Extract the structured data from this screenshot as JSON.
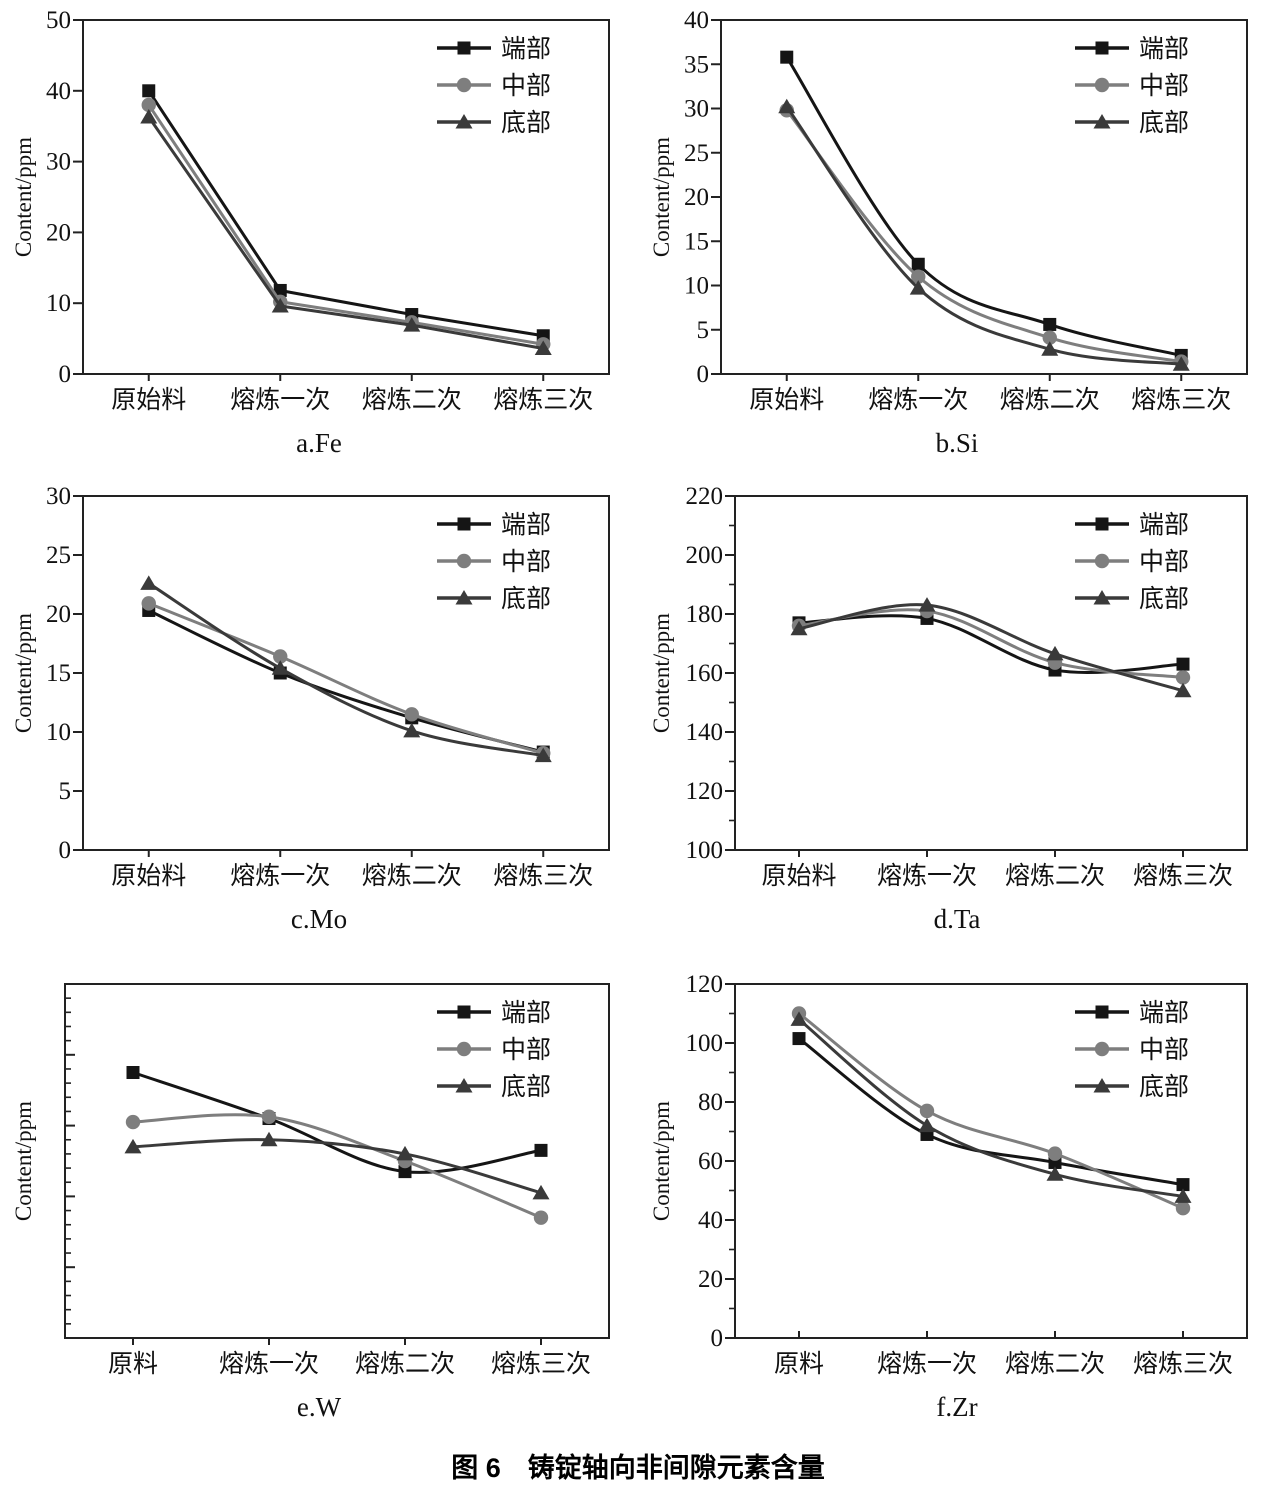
{
  "caption": "图 6　铸锭轴向非间隙元素含量",
  "ylabel": "Content/ppm",
  "chart_data": [
    {
      "type": "line",
      "title": "a.Fe",
      "ylabel": "Content/ppm",
      "categories": [
        "原始料",
        "熔炼一次",
        "熔炼二次",
        "熔炼三次"
      ],
      "ylim": [
        0,
        50
      ],
      "ytick_step": 10,
      "yminor_step": null,
      "show_ytick_labels": true,
      "yticks_inward": false,
      "xticks_inward": false,
      "smooth": false,
      "grid": false,
      "legend_position": "top-right",
      "series": [
        {
          "name": "端部",
          "marker": "square",
          "color": "#151515",
          "values": [
            40.0,
            11.8,
            8.4,
            5.4
          ]
        },
        {
          "name": "中部",
          "marker": "circle",
          "color": "#7e7e7e",
          "values": [
            38.0,
            10.2,
            7.3,
            4.2
          ]
        },
        {
          "name": "底部",
          "marker": "triangle",
          "color": "#3a3a3a",
          "values": [
            36.3,
            9.6,
            6.9,
            3.6
          ]
        }
      ]
    },
    {
      "type": "line",
      "title": "b.Si",
      "ylabel": "Content/ppm",
      "categories": [
        "原始料",
        "熔炼一次",
        "熔炼二次",
        "熔炼三次"
      ],
      "ylim": [
        0,
        40
      ],
      "ytick_step": 5,
      "yminor_step": null,
      "show_ytick_labels": true,
      "yticks_inward": false,
      "xticks_inward": false,
      "smooth": true,
      "grid": false,
      "legend_position": "top-right",
      "series": [
        {
          "name": "端部",
          "marker": "square",
          "color": "#151515",
          "values": [
            35.8,
            12.4,
            5.6,
            2.1
          ]
        },
        {
          "name": "中部",
          "marker": "circle",
          "color": "#7e7e7e",
          "values": [
            29.8,
            11.0,
            4.1,
            1.4
          ]
        },
        {
          "name": "底部",
          "marker": "triangle",
          "color": "#3a3a3a",
          "values": [
            30.2,
            9.7,
            2.8,
            1.1
          ]
        }
      ]
    },
    {
      "type": "line",
      "title": "c.Mo",
      "ylabel": "Content/ppm",
      "categories": [
        "原始料",
        "熔炼一次",
        "熔炼二次",
        "熔炼三次"
      ],
      "ylim": [
        0,
        30
      ],
      "ytick_step": 5,
      "yminor_step": null,
      "show_ytick_labels": true,
      "yticks_inward": false,
      "xticks_inward": false,
      "smooth": true,
      "grid": false,
      "legend_position": "top-right",
      "series": [
        {
          "name": "端部",
          "marker": "square",
          "color": "#151515",
          "values": [
            20.3,
            15.0,
            11.2,
            8.3
          ]
        },
        {
          "name": "中部",
          "marker": "circle",
          "color": "#7e7e7e",
          "values": [
            20.9,
            16.4,
            11.5,
            8.2
          ]
        },
        {
          "name": "底部",
          "marker": "triangle",
          "color": "#3a3a3a",
          "values": [
            22.6,
            15.4,
            10.1,
            8.0
          ]
        }
      ]
    },
    {
      "type": "line",
      "title": "d.Ta",
      "ylabel": "Content/ppm",
      "categories": [
        "原始料",
        "熔炼一次",
        "熔炼二次",
        "熔炼三次"
      ],
      "ylim": [
        100,
        220
      ],
      "ytick_step": 20,
      "yminor_step": 10,
      "show_ytick_labels": true,
      "yticks_inward": false,
      "xticks_inward": false,
      "smooth": true,
      "grid": false,
      "legend_position": "top-right",
      "series": [
        {
          "name": "端部",
          "marker": "square",
          "color": "#151515",
          "values": [
            177.0,
            178.5,
            161.0,
            163.0
          ]
        },
        {
          "name": "中部",
          "marker": "circle",
          "color": "#7e7e7e",
          "values": [
            176.0,
            181.0,
            163.5,
            158.5
          ]
        },
        {
          "name": "底部",
          "marker": "triangle",
          "color": "#3a3a3a",
          "values": [
            175.0,
            183.0,
            166.5,
            154.0
          ]
        }
      ]
    },
    {
      "type": "line",
      "title": "e.W",
      "ylabel": "Content/ppm",
      "categories": [
        "原料",
        "熔炼一次",
        "熔炼二次",
        "熔炼三次"
      ],
      "ylim": [
        0,
        100
      ],
      "ytick_step": 20,
      "yminor_step": 4,
      "show_ytick_labels": false,
      "yticks_inward": true,
      "xticks_inward": false,
      "smooth": true,
      "grid": false,
      "legend_position": "top-right",
      "axis_note": "y-axis tick marks unlabeled; values estimated on relative 0-100 scale",
      "series": [
        {
          "name": "端部",
          "marker": "square",
          "color": "#151515",
          "values": [
            75.0,
            62.0,
            47.0,
            53.0
          ]
        },
        {
          "name": "中部",
          "marker": "circle",
          "color": "#7e7e7e",
          "values": [
            61.0,
            62.5,
            50.0,
            34.0
          ]
        },
        {
          "name": "底部",
          "marker": "triangle",
          "color": "#3a3a3a",
          "values": [
            54.0,
            56.0,
            52.0,
            41.0
          ]
        }
      ]
    },
    {
      "type": "line",
      "title": "f.Zr",
      "ylabel": "Content/ppm",
      "categories": [
        "原料",
        "熔炼一次",
        "熔炼二次",
        "熔炼三次"
      ],
      "ylim": [
        0,
        120
      ],
      "ytick_step": 20,
      "yminor_step": 10,
      "show_ytick_labels": true,
      "yticks_inward": false,
      "xticks_inward": true,
      "smooth": true,
      "grid": false,
      "legend_position": "top-right",
      "series": [
        {
          "name": "端部",
          "marker": "square",
          "color": "#151515",
          "values": [
            101.5,
            69.0,
            59.5,
            52.0
          ]
        },
        {
          "name": "中部",
          "marker": "circle",
          "color": "#7e7e7e",
          "values": [
            110.0,
            77.0,
            62.5,
            44.0
          ]
        },
        {
          "name": "底部",
          "marker": "triangle",
          "color": "#3a3a3a",
          "values": [
            108.0,
            72.0,
            55.5,
            48.0
          ]
        }
      ]
    }
  ]
}
